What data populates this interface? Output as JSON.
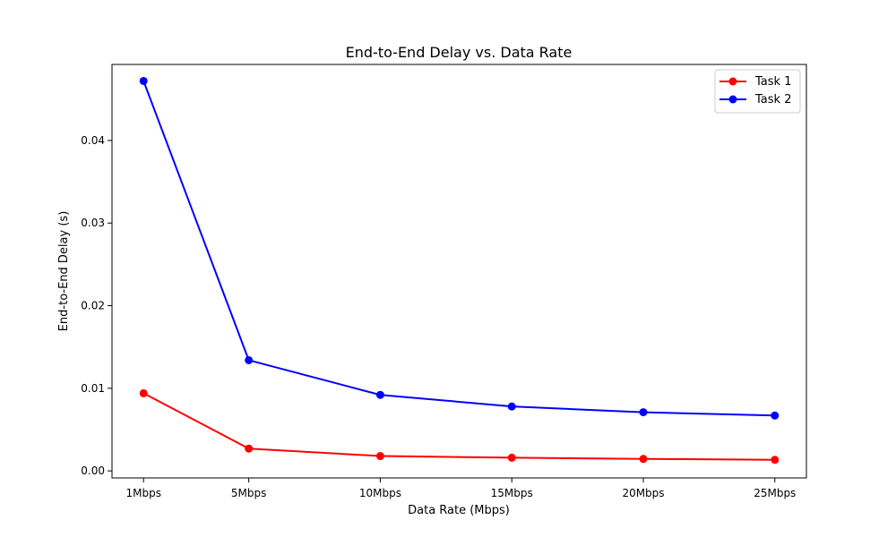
{
  "chart_data": {
    "type": "line",
    "title": "End-to-End Delay vs. Data Rate",
    "xlabel": "Data Rate (Mbps)",
    "ylabel": "End-to-End Delay (s)",
    "categories": [
      "1Mbps",
      "5Mbps",
      "10Mbps",
      "15Mbps",
      "20Mbps",
      "25Mbps"
    ],
    "x": [
      1,
      5,
      10,
      15,
      20,
      25
    ],
    "xlim": [
      -0.2,
      26.2
    ],
    "ylim": [
      -0.00085,
      0.0492
    ],
    "yticks": [
      0.0,
      0.01,
      0.02,
      0.03,
      0.04
    ],
    "ytick_labels": [
      "0.00",
      "0.01",
      "0.02",
      "0.03",
      "0.04"
    ],
    "grid": false,
    "legend_position": "top-right",
    "series": [
      {
        "name": "Task 1",
        "color": "#ff0000",
        "values": [
          0.0094,
          0.0027,
          0.0018,
          0.0016,
          0.00145,
          0.00135
        ]
      },
      {
        "name": "Task 2",
        "color": "#0000ff",
        "values": [
          0.0472,
          0.0134,
          0.0092,
          0.0078,
          0.0071,
          0.0067
        ]
      }
    ]
  }
}
